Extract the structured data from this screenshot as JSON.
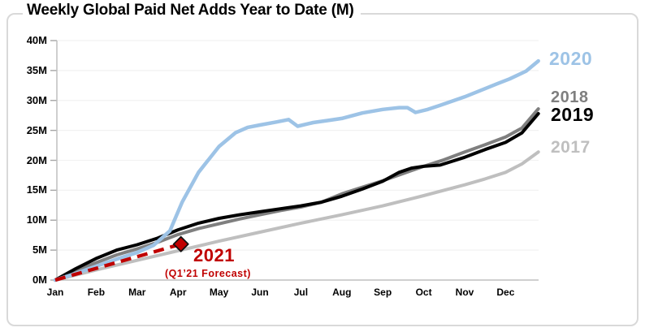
{
  "chart_data": {
    "type": "line",
    "title": "Weekly Global Paid Net Adds Year to Date (M)",
    "x_axis": {
      "categories": [
        "Jan",
        "Feb",
        "Mar",
        "Apr",
        "May",
        "Jun",
        "Jul",
        "Aug",
        "Sep",
        "Oct",
        "Nov",
        "Dec"
      ],
      "range_months": [
        0,
        12
      ]
    },
    "y_axis": {
      "tick_labels": [
        "0M",
        "5M",
        "10M",
        "15M",
        "20M",
        "25M",
        "30M",
        "35M",
        "40M"
      ],
      "tick_values": [
        0,
        5,
        10,
        15,
        20,
        25,
        30,
        35,
        40
      ],
      "min": 0,
      "max": 40,
      "unit": "M"
    },
    "grid": "horizontal-5M",
    "legend_position": "right-end-labels",
    "series": [
      {
        "name": "2020",
        "color": "#9DC3E6",
        "end_value_m": 36.6,
        "points": [
          [
            0,
            0
          ],
          [
            0.5,
            1.1
          ],
          [
            1,
            2.3
          ],
          [
            1.5,
            3.5
          ],
          [
            2,
            4.6
          ],
          [
            2.4,
            5.8
          ],
          [
            2.8,
            8.2
          ],
          [
            3.1,
            13.0
          ],
          [
            3.5,
            18.0
          ],
          [
            4,
            22.3
          ],
          [
            4.4,
            24.6
          ],
          [
            4.7,
            25.5
          ],
          [
            5,
            25.9
          ],
          [
            5.4,
            26.4
          ],
          [
            5.7,
            26.8
          ],
          [
            5.92,
            25.7
          ],
          [
            6.3,
            26.3
          ],
          [
            6.7,
            26.7
          ],
          [
            7,
            27.0
          ],
          [
            7.5,
            27.9
          ],
          [
            8,
            28.5
          ],
          [
            8.4,
            28.8
          ],
          [
            8.6,
            28.8
          ],
          [
            8.8,
            28.0
          ],
          [
            9.1,
            28.5
          ],
          [
            9.4,
            29.2
          ],
          [
            9.7,
            29.9
          ],
          [
            10,
            30.6
          ],
          [
            10.4,
            31.7
          ],
          [
            10.8,
            32.8
          ],
          [
            11.1,
            33.6
          ],
          [
            11.5,
            34.9
          ],
          [
            11.8,
            36.6
          ]
        ]
      },
      {
        "name": "2018",
        "color": "#7F7F7F",
        "end_value_m": 28.6,
        "points": [
          [
            0,
            0
          ],
          [
            0.5,
            1.5
          ],
          [
            1,
            2.9
          ],
          [
            1.5,
            4.2
          ],
          [
            2,
            5.2
          ],
          [
            2.5,
            6.3
          ],
          [
            3,
            7.6
          ],
          [
            3.5,
            8.6
          ],
          [
            4,
            9.4
          ],
          [
            4.5,
            10.2
          ],
          [
            5,
            10.9
          ],
          [
            5.5,
            11.6
          ],
          [
            6,
            12.2
          ],
          [
            6.5,
            13.0
          ],
          [
            7,
            14.4
          ],
          [
            7.5,
            15.5
          ],
          [
            8,
            16.6
          ],
          [
            8.5,
            17.8
          ],
          [
            9,
            19.0
          ],
          [
            9.5,
            20.1
          ],
          [
            10,
            21.4
          ],
          [
            10.5,
            22.6
          ],
          [
            11,
            23.9
          ],
          [
            11.4,
            25.4
          ],
          [
            11.8,
            28.6
          ]
        ]
      },
      {
        "name": "2019",
        "color": "#000000",
        "end_value_m": 27.8,
        "points": [
          [
            0,
            0
          ],
          [
            0.5,
            1.9
          ],
          [
            1,
            3.6
          ],
          [
            1.5,
            5.0
          ],
          [
            2,
            5.9
          ],
          [
            2.5,
            7.0
          ],
          [
            3,
            8.4
          ],
          [
            3.5,
            9.5
          ],
          [
            4,
            10.3
          ],
          [
            4.5,
            10.9
          ],
          [
            5,
            11.4
          ],
          [
            5.5,
            11.9
          ],
          [
            6,
            12.4
          ],
          [
            6.5,
            13.0
          ],
          [
            7,
            14.0
          ],
          [
            7.5,
            15.2
          ],
          [
            8,
            16.5
          ],
          [
            8.4,
            18.0
          ],
          [
            8.7,
            18.7
          ],
          [
            9,
            19.0
          ],
          [
            9.4,
            19.2
          ],
          [
            10,
            20.5
          ],
          [
            10.5,
            21.8
          ],
          [
            11,
            23.0
          ],
          [
            11.4,
            24.6
          ],
          [
            11.8,
            27.8
          ]
        ]
      },
      {
        "name": "2017",
        "color": "#BFBFBF",
        "end_value_m": 21.4,
        "points": [
          [
            0,
            0
          ],
          [
            1,
            1.7
          ],
          [
            2,
            3.3
          ],
          [
            3,
            4.9
          ],
          [
            4,
            6.5
          ],
          [
            5,
            8.0
          ],
          [
            6,
            9.5
          ],
          [
            7,
            10.9
          ],
          [
            8,
            12.4
          ],
          [
            9,
            14.1
          ],
          [
            10,
            15.9
          ],
          [
            10.5,
            16.9
          ],
          [
            11,
            18.0
          ],
          [
            11.4,
            19.4
          ],
          [
            11.8,
            21.4
          ]
        ]
      }
    ],
    "forecast": {
      "name": "2021",
      "note": "(Q1’21 Forecast)",
      "color": "#C00000",
      "style": "dashed",
      "points": [
        [
          0,
          0
        ],
        [
          3.07,
          6.0
        ]
      ],
      "marker": "diamond",
      "marker_value_m": 6.0
    }
  },
  "frame": {
    "border_color": "#D9D9D9"
  }
}
